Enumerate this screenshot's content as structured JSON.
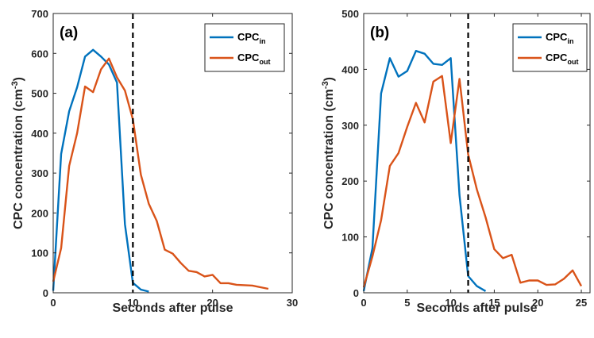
{
  "chart_data": [
    {
      "type": "line",
      "panel_label": "(a)",
      "xlabel": "Seconds after pulse",
      "ylabel": {
        "main": "CPC  concentration  (cm",
        "exp": "-3",
        "close": ")"
      },
      "xlim": [
        0,
        30
      ],
      "ylim": [
        0,
        700
      ],
      "xticks": [
        0,
        10,
        20,
        30
      ],
      "yticks": [
        0,
        100,
        200,
        300,
        400,
        500,
        600,
        700
      ],
      "vline_x": 10,
      "grid": false,
      "legend_position": "top-right",
      "series": [
        {
          "name": "CPC_in",
          "legend": {
            "base": "CPC",
            "sub": "in"
          },
          "color": "#0072BD",
          "x": [
            0,
            1,
            2,
            3,
            4,
            5,
            6,
            7,
            8,
            9,
            10,
            11,
            12
          ],
          "y": [
            5,
            348,
            455,
            515,
            592,
            609,
            592,
            572,
            527,
            172,
            25,
            8,
            3
          ]
        },
        {
          "name": "CPC_out",
          "legend": {
            "base": "CPC",
            "sub": "out"
          },
          "color": "#D95319",
          "x": [
            0,
            1,
            2,
            3,
            4,
            5,
            6,
            7,
            8,
            9,
            10,
            11,
            12,
            13,
            14,
            15,
            16,
            17,
            18,
            19,
            20,
            21,
            22,
            23,
            24,
            25,
            26,
            27
          ],
          "y": [
            28,
            112,
            318,
            400,
            517,
            503,
            560,
            587,
            540,
            507,
            435,
            296,
            223,
            180,
            108,
            98,
            75,
            55,
            52,
            41,
            45,
            24,
            24,
            20,
            19,
            18,
            14,
            10
          ]
        }
      ]
    },
    {
      "type": "line",
      "panel_label": "(b)",
      "xlabel": "Seconds after pulse",
      "ylabel": {
        "main": "CPC  concentration  (cm",
        "exp": "-3",
        "close": ")"
      },
      "xlim": [
        0,
        26
      ],
      "ylim": [
        0,
        500
      ],
      "xticks": [
        0,
        5,
        10,
        15,
        20,
        25
      ],
      "yticks": [
        0,
        100,
        200,
        300,
        400,
        500
      ],
      "vline_x": 12,
      "grid": false,
      "legend_position": "top-right",
      "series": [
        {
          "name": "CPC_in",
          "legend": {
            "base": "CPC",
            "sub": "in"
          },
          "color": "#0072BD",
          "x": [
            0,
            1,
            2,
            3,
            4,
            5,
            6,
            7,
            8,
            9,
            10,
            11,
            12,
            13,
            14
          ],
          "y": [
            3,
            80,
            357,
            420,
            387,
            397,
            433,
            428,
            410,
            408,
            420,
            175,
            30,
            12,
            3
          ]
        },
        {
          "name": "CPC_out",
          "legend": {
            "base": "CPC",
            "sub": "out"
          },
          "color": "#D95319",
          "x": [
            0,
            1,
            2,
            3,
            4,
            5,
            6,
            7,
            8,
            9,
            10,
            11,
            12,
            13,
            14,
            15,
            16,
            17,
            18,
            19,
            20,
            21,
            22,
            23,
            24,
            25
          ],
          "y": [
            10,
            65,
            130,
            227,
            250,
            297,
            340,
            305,
            378,
            388,
            268,
            383,
            248,
            185,
            135,
            78,
            62,
            68,
            18,
            22,
            22,
            14,
            15,
            25,
            40,
            12
          ]
        }
      ]
    }
  ]
}
